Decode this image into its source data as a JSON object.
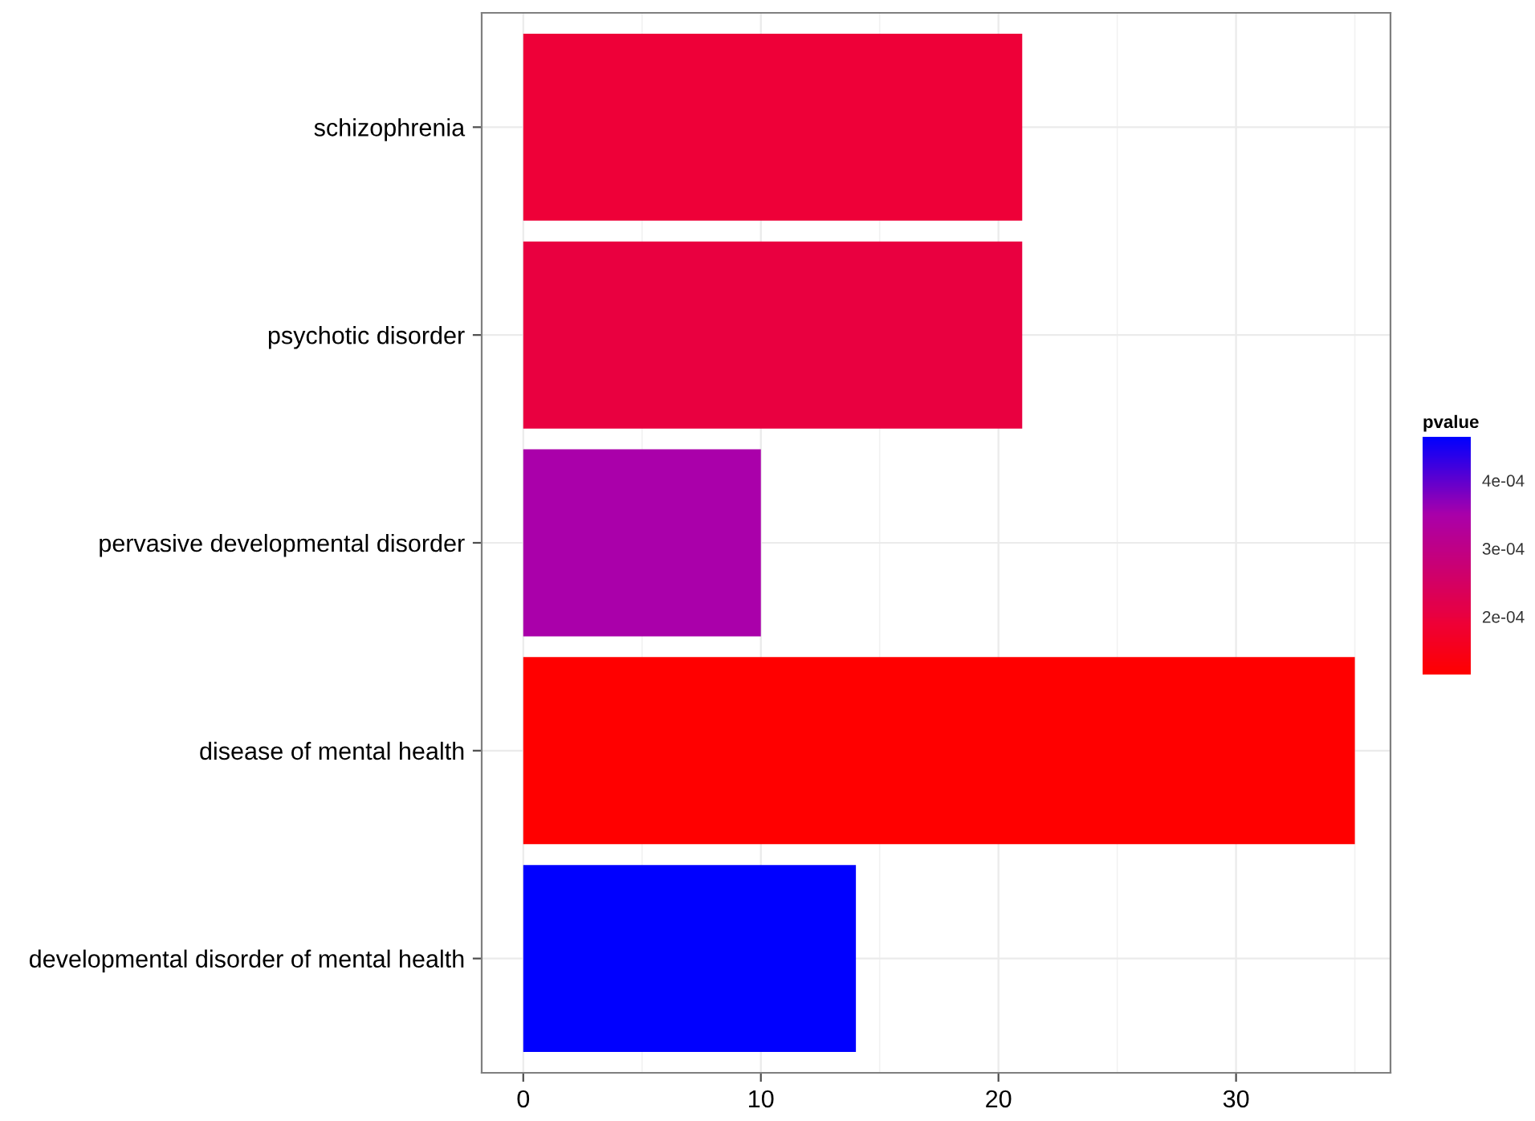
{
  "chart_data": {
    "type": "bar",
    "orientation": "horizontal",
    "categories": [
      "schizophrenia",
      "psychotic disorder",
      "pervasive developmental disorder",
      "disease of mental health",
      "developmental disorder of mental health"
    ],
    "values": [
      21,
      21,
      10,
      35,
      14
    ],
    "colors": [
      "#ee0038",
      "#e90040",
      "#aa00aa",
      "#ff0000",
      "#0000ff"
    ],
    "cvalues": [
      0.000192,
      0.0002,
      0.00035,
      0.000115,
      0.000464
    ],
    "clabel": "pvalue",
    "clim": [
      0.000115,
      0.000464
    ],
    "cticks": [
      {
        "value": 0.0002,
        "label": "2e-04"
      },
      {
        "value": 0.0003,
        "label": "3e-04"
      },
      {
        "value": 0.0004,
        "label": "4e-04"
      }
    ],
    "xlim": [
      -1.75,
      36.5
    ],
    "xticks": [
      0,
      10,
      20,
      30
    ],
    "grid": true
  }
}
